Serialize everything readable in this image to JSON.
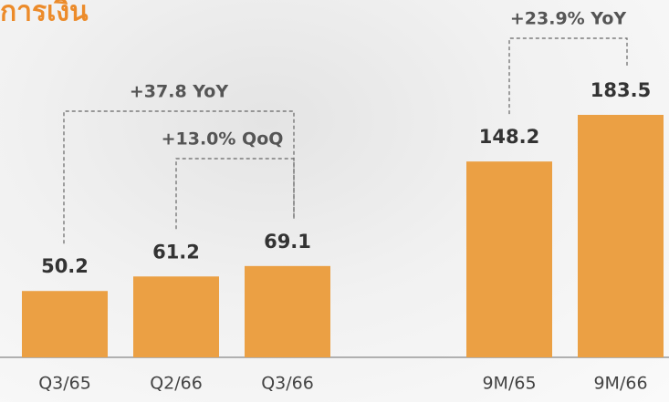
{
  "chart_data": {
    "type": "bar",
    "title": "การเงิน",
    "categories": [
      "Q3/65",
      "Q2/66",
      "Q3/66",
      "9M/65",
      "9M/66"
    ],
    "values": [
      50.2,
      61.2,
      69.1,
      148.2,
      183.5
    ],
    "color": "#eba044",
    "annotations": [
      "+37.8 YoY",
      "+13.0% QoQ",
      "+23.9% YoY"
    ]
  }
}
